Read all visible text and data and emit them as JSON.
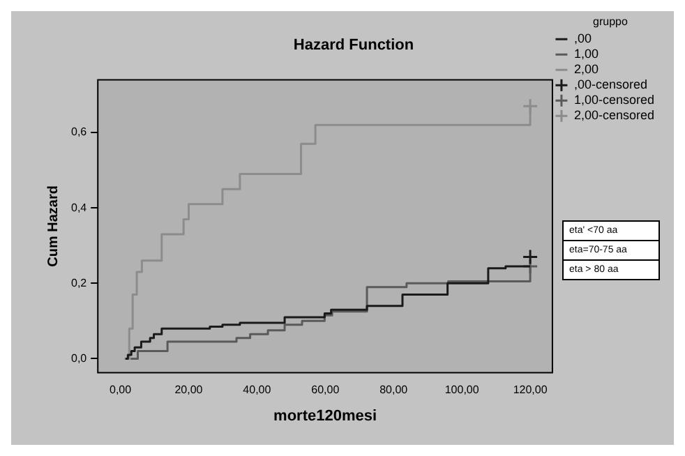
{
  "chart_data": {
    "type": "step",
    "title": "Hazard Function",
    "xlabel": "morte120mesi",
    "ylabel": "Cum Hazard",
    "legend_title": "gruppo",
    "legend": "right",
    "grid": false,
    "marker": "none",
    "line_style": "solid",
    "xlim": [
      -6.6,
      126.5
    ],
    "xticks": [
      {
        "value": 0,
        "label": "0,00"
      },
      {
        "value": 20,
        "label": "20,00"
      },
      {
        "value": 40,
        "label": "40,00"
      },
      {
        "value": 60,
        "label": "60,00"
      },
      {
        "value": 80,
        "label": "80,00"
      },
      {
        "value": 100,
        "label": "100,00"
      },
      {
        "value": 120,
        "label": "120,00"
      }
    ],
    "ylim": [
      -0.037,
      0.74
    ],
    "yticks": [
      {
        "value": 0,
        "label": "0,0"
      },
      {
        "value": 0.2,
        "label": "0,2"
      },
      {
        "value": 0.4,
        "label": "0,4"
      },
      {
        "value": 0.6,
        "label": "0,6"
      }
    ],
    "annotations": [
      "eta' <70 aa",
      "eta=70-75 aa",
      "eta > 80 aa"
    ],
    "series": [
      {
        "name": ",00",
        "type": "step",
        "color": "#1a1a1a",
        "x": [
          1.5,
          2.2,
          3.2,
          4.2,
          6.1,
          8.7,
          9.8,
          12.1,
          26.2,
          29.9,
          35,
          48.1,
          59.8,
          61.7,
          72.2,
          82.6,
          95.8,
          107.7,
          112.8,
          120
        ],
        "values": [
          0,
          0.01,
          0.02,
          0.03,
          0.045,
          0.055,
          0.065,
          0.08,
          0.085,
          0.09,
          0.095,
          0.11,
          0.12,
          0.13,
          0.14,
          0.17,
          0.2,
          0.24,
          0.245,
          0.245
        ]
      },
      {
        "name": "1,00",
        "type": "step",
        "color": "#5a5a5a",
        "x": [
          3,
          5.1,
          13.8,
          34,
          38,
          43.2,
          48.1,
          53.2,
          59.8,
          62,
          72.2,
          83.8,
          96,
          120
        ],
        "values": [
          0,
          0.02,
          0.045,
          0.055,
          0.065,
          0.075,
          0.09,
          0.1,
          0.115,
          0.125,
          0.19,
          0.2,
          0.205,
          0.245
        ]
      },
      {
        "name": "2,00",
        "type": "step",
        "color": "#8c8c8c",
        "x": [
          1.2,
          2.6,
          3.6,
          4.8,
          6.3,
          12.1,
          18.5,
          20,
          29.9,
          35,
          52.9,
          57.1,
          120
        ],
        "values": [
          0,
          0.08,
          0.17,
          0.23,
          0.26,
          0.33,
          0.37,
          0.41,
          0.45,
          0.49,
          0.57,
          0.62,
          0.67
        ]
      },
      {
        "name": ",00-censored",
        "type": "scatter",
        "marker": "cross",
        "color": "#1a1a1a",
        "x": [
          120
        ],
        "values": [
          0.27
        ]
      },
      {
        "name": "1,00-censored",
        "type": "scatter",
        "marker": "cross",
        "color": "#5a5a5a",
        "x": [
          120
        ],
        "values": [
          0.245
        ]
      },
      {
        "name": "2,00-censored",
        "type": "scatter",
        "marker": "cross",
        "color": "#8c8c8c",
        "x": [
          120
        ],
        "values": [
          0.67
        ]
      }
    ]
  }
}
